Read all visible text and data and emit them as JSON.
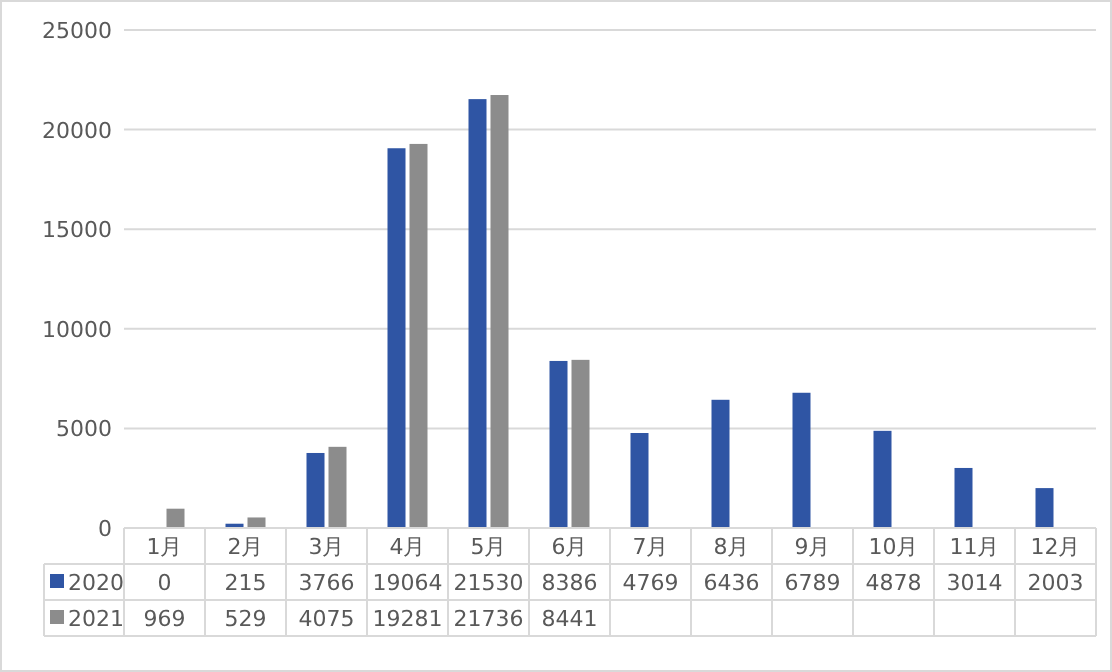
{
  "chart_data": {
    "type": "bar",
    "categories": [
      "1月",
      "2月",
      "3月",
      "4月",
      "5月",
      "6月",
      "7月",
      "8月",
      "9月",
      "10月",
      "11月",
      "12月"
    ],
    "series": [
      {
        "name": "2020",
        "color": "#2f55a4",
        "values": [
          0,
          215,
          3766,
          19064,
          21530,
          8386,
          4769,
          6436,
          6789,
          4878,
          3014,
          2003
        ]
      },
      {
        "name": "2021",
        "color": "#8c8c8c",
        "values": [
          969,
          529,
          4075,
          19281,
          21736,
          8441,
          null,
          null,
          null,
          null,
          null,
          null
        ]
      }
    ],
    "ylim": [
      0,
      25000
    ],
    "yticks": [
      0,
      5000,
      10000,
      15000,
      20000,
      25000
    ],
    "grid": "y",
    "legend": "bottom",
    "data_labels": true
  }
}
